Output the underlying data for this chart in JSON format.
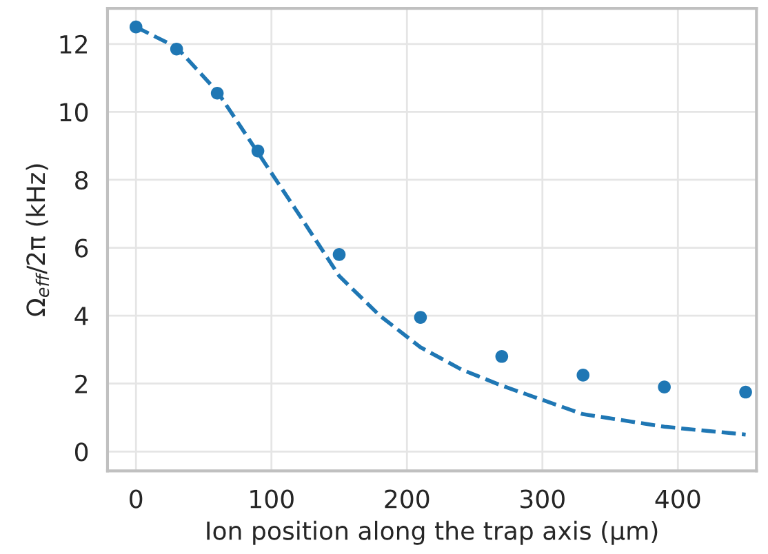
{
  "chart_data": {
    "type": "scatter",
    "xlabel": "Ion position along the trap axis (μm)",
    "ylabel": "Ω$_{eff}$/2π (kHz)",
    "xlim": [
      -21,
      458
    ],
    "ylim": [
      -0.57,
      13.05
    ],
    "xticks": [
      0,
      100,
      200,
      300,
      400
    ],
    "yticks": [
      0,
      2,
      4,
      6,
      8,
      10,
      12
    ],
    "grid": true,
    "legend": false,
    "series": [
      {
        "color": "#1f77b4",
        "marker": "circle",
        "x": [
          0,
          30,
          60,
          90,
          150,
          210,
          270,
          330,
          390,
          450
        ],
        "values": [
          12.5,
          11.85,
          10.55,
          8.85,
          5.8,
          3.95,
          2.8,
          2.25,
          1.9,
          1.75
        ]
      },
      {
        "type": "line",
        "color": "#1f77b4",
        "line_style": "dashed",
        "marker": "none",
        "x": [
          0,
          30,
          60,
          90,
          120,
          150,
          180,
          210,
          240,
          270,
          330,
          390,
          450
        ],
        "values": [
          12.5,
          11.9,
          10.6,
          8.8,
          7.0,
          5.17,
          4.0,
          3.07,
          2.42,
          1.94,
          1.1,
          0.73,
          0.5
        ]
      }
    ]
  }
}
